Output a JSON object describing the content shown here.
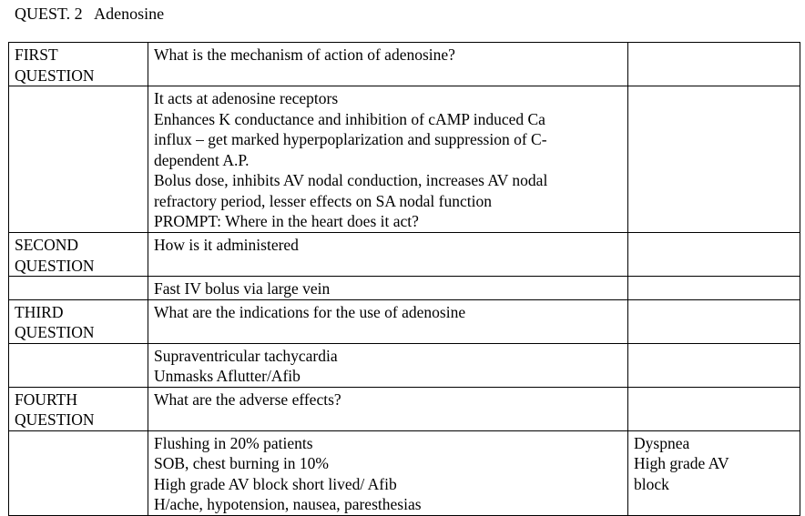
{
  "document": {
    "title": "QUEST. 2   Adenosine"
  },
  "rows": [
    {
      "label": [
        "FIRST",
        "QUESTION"
      ],
      "content": [
        "What is the mechanism of action of adenosine?"
      ],
      "extra": []
    },
    {
      "label": [],
      "content": [
        "It acts at adenosine receptors",
        "Enhances K conductance and inhibition of cAMP induced Ca",
        "influx – get marked hyperpoplarization and suppression of C-",
        "dependent A.P.",
        "Bolus dose, inhibits AV nodal conduction, increases AV nodal",
        "refractory period,  lesser effects on SA nodal function",
        "PROMPT:  Where in the heart does it act?"
      ],
      "extra": []
    },
    {
      "label": [
        "SECOND",
        "QUESTION"
      ],
      "content": [
        "How is it administered"
      ],
      "extra": []
    },
    {
      "label": [],
      "content": [
        "Fast  IV bolus via large vein"
      ],
      "extra": []
    },
    {
      "label": [
        "THIRD",
        "QUESTION"
      ],
      "content": [
        "What are the indications for the use of adenosine"
      ],
      "extra": []
    },
    {
      "label": [],
      "content": [
        "Supraventricular tachycardia",
        "Unmasks Aflutter/Afib"
      ],
      "extra": []
    },
    {
      "label": [
        "FOURTH",
        "QUESTION"
      ],
      "content": [
        "What are the adverse effects?"
      ],
      "extra": []
    },
    {
      "label": [],
      "content": [
        "Flushing in 20% patients",
        "SOB, chest burning in 10%",
        "High grade AV block short lived/ Afib",
        "H/ache, hypotension, nausea, paresthesias"
      ],
      "extra": [
        "Dyspnea",
        "High grade AV",
        "block"
      ]
    }
  ]
}
